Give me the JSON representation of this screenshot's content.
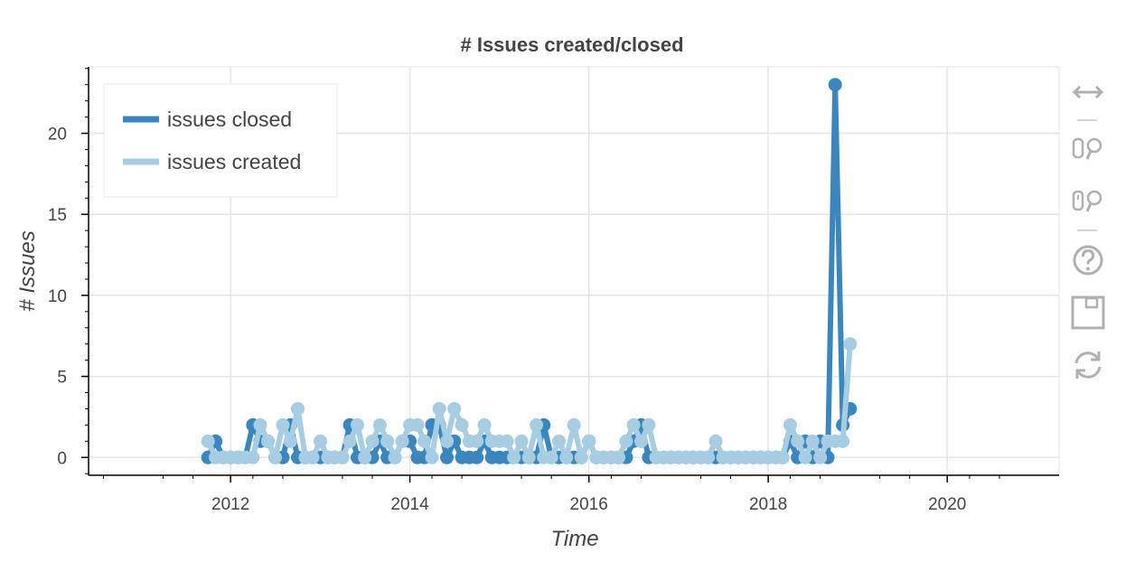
{
  "chart_data": {
    "type": "line",
    "title": "# Issues created/closed",
    "xlabel": "Time",
    "ylabel": "# Issues",
    "x_axis_type": "datetime",
    "xlim": [
      "2010-06-01",
      "2021-04-01"
    ],
    "ylim": [
      -1.1,
      24.1
    ],
    "x_ticks": [
      "2012",
      "2014",
      "2016",
      "2018",
      "2020"
    ],
    "y_ticks": [
      0,
      5,
      10,
      15,
      20
    ],
    "grid": true,
    "legend_position": "top-left",
    "series": [
      {
        "name": "issues closed",
        "color": "#3a87c0",
        "points": [
          [
            "2011-10-01",
            0
          ],
          [
            "2011-11-01",
            1
          ],
          [
            "2011-12-01",
            0
          ],
          [
            "2012-01-01",
            0
          ],
          [
            "2012-02-01",
            0
          ],
          [
            "2012-03-01",
            0
          ],
          [
            "2012-04-01",
            2
          ],
          [
            "2012-05-01",
            1
          ],
          [
            "2012-06-01",
            1
          ],
          [
            "2012-07-01",
            0
          ],
          [
            "2012-08-01",
            0
          ],
          [
            "2012-09-01",
            2
          ],
          [
            "2012-10-01",
            0
          ],
          [
            "2012-11-01",
            0
          ],
          [
            "2012-12-01",
            0
          ],
          [
            "2013-01-01",
            0
          ],
          [
            "2013-02-01",
            0
          ],
          [
            "2013-03-01",
            0
          ],
          [
            "2013-04-01",
            0
          ],
          [
            "2013-05-01",
            2
          ],
          [
            "2013-06-01",
            0
          ],
          [
            "2013-07-01",
            0
          ],
          [
            "2013-08-01",
            0
          ],
          [
            "2013-09-01",
            1
          ],
          [
            "2013-10-01",
            0
          ],
          [
            "2013-11-01",
            0
          ],
          [
            "2013-12-01",
            1
          ],
          [
            "2014-01-01",
            1
          ],
          [
            "2014-02-01",
            0
          ],
          [
            "2014-03-01",
            0
          ],
          [
            "2014-04-01",
            2
          ],
          [
            "2014-05-01",
            2
          ],
          [
            "2014-06-01",
            0
          ],
          [
            "2014-07-01",
            1
          ],
          [
            "2014-08-01",
            0
          ],
          [
            "2014-09-01",
            0
          ],
          [
            "2014-10-01",
            0
          ],
          [
            "2014-11-01",
            1
          ],
          [
            "2014-12-01",
            0
          ],
          [
            "2015-01-01",
            0
          ],
          [
            "2015-02-01",
            0
          ],
          [
            "2015-03-01",
            0
          ],
          [
            "2015-04-01",
            0
          ],
          [
            "2015-05-01",
            0
          ],
          [
            "2015-06-01",
            0
          ],
          [
            "2015-07-01",
            2
          ],
          [
            "2015-08-01",
            0
          ],
          [
            "2015-09-01",
            0
          ],
          [
            "2015-10-01",
            0
          ],
          [
            "2015-11-01",
            0
          ],
          [
            "2015-12-01",
            0
          ],
          [
            "2016-01-01",
            1
          ],
          [
            "2016-02-01",
            0
          ],
          [
            "2016-03-01",
            0
          ],
          [
            "2016-04-01",
            0
          ],
          [
            "2016-05-01",
            0
          ],
          [
            "2016-06-01",
            0
          ],
          [
            "2016-07-01",
            1
          ],
          [
            "2016-08-01",
            2
          ],
          [
            "2016-09-01",
            0
          ],
          [
            "2016-10-01",
            0
          ],
          [
            "2016-11-01",
            0
          ],
          [
            "2016-12-01",
            0
          ],
          [
            "2017-01-01",
            0
          ],
          [
            "2017-02-01",
            0
          ],
          [
            "2017-03-01",
            0
          ],
          [
            "2017-04-01",
            0
          ],
          [
            "2017-05-01",
            0
          ],
          [
            "2017-06-01",
            0
          ],
          [
            "2017-07-01",
            0
          ],
          [
            "2017-08-01",
            0
          ],
          [
            "2017-09-01",
            0
          ],
          [
            "2017-10-01",
            0
          ],
          [
            "2017-11-01",
            0
          ],
          [
            "2017-12-01",
            0
          ],
          [
            "2018-01-01",
            0
          ],
          [
            "2018-02-01",
            0
          ],
          [
            "2018-03-01",
            0
          ],
          [
            "2018-04-01",
            1
          ],
          [
            "2018-05-01",
            0
          ],
          [
            "2018-06-01",
            1
          ],
          [
            "2018-07-01",
            0
          ],
          [
            "2018-08-01",
            1
          ],
          [
            "2018-09-01",
            0
          ],
          [
            "2018-10-01",
            23
          ],
          [
            "2018-11-01",
            2
          ],
          [
            "2018-12-01",
            3
          ]
        ]
      },
      {
        "name": "issues created",
        "color": "#a6cde2",
        "points": [
          [
            "2011-10-01",
            1
          ],
          [
            "2011-11-01",
            0
          ],
          [
            "2011-12-01",
            0
          ],
          [
            "2012-01-01",
            0
          ],
          [
            "2012-02-01",
            0
          ],
          [
            "2012-03-01",
            0
          ],
          [
            "2012-04-01",
            0
          ],
          [
            "2012-05-01",
            2
          ],
          [
            "2012-06-01",
            1
          ],
          [
            "2012-07-01",
            0
          ],
          [
            "2012-08-01",
            2
          ],
          [
            "2012-09-01",
            1
          ],
          [
            "2012-10-01",
            3
          ],
          [
            "2012-11-01",
            0
          ],
          [
            "2012-12-01",
            0
          ],
          [
            "2013-01-01",
            1
          ],
          [
            "2013-02-01",
            0
          ],
          [
            "2013-03-01",
            0
          ],
          [
            "2013-04-01",
            0
          ],
          [
            "2013-05-01",
            1
          ],
          [
            "2013-06-01",
            2
          ],
          [
            "2013-07-01",
            0
          ],
          [
            "2013-08-01",
            1
          ],
          [
            "2013-09-01",
            2
          ],
          [
            "2013-10-01",
            1
          ],
          [
            "2013-11-01",
            0
          ],
          [
            "2013-12-01",
            1
          ],
          [
            "2014-01-01",
            2
          ],
          [
            "2014-02-01",
            2
          ],
          [
            "2014-03-01",
            1
          ],
          [
            "2014-04-01",
            0
          ],
          [
            "2014-05-01",
            3
          ],
          [
            "2014-06-01",
            1
          ],
          [
            "2014-07-01",
            3
          ],
          [
            "2014-08-01",
            2
          ],
          [
            "2014-09-01",
            1
          ],
          [
            "2014-10-01",
            1
          ],
          [
            "2014-11-01",
            2
          ],
          [
            "2014-12-01",
            1
          ],
          [
            "2015-01-01",
            1
          ],
          [
            "2015-02-01",
            1
          ],
          [
            "2015-03-01",
            0
          ],
          [
            "2015-04-01",
            1
          ],
          [
            "2015-05-01",
            0
          ],
          [
            "2015-06-01",
            2
          ],
          [
            "2015-07-01",
            0
          ],
          [
            "2015-08-01",
            0
          ],
          [
            "2015-09-01",
            1
          ],
          [
            "2015-10-01",
            0
          ],
          [
            "2015-11-01",
            2
          ],
          [
            "2015-12-01",
            0
          ],
          [
            "2016-01-01",
            1
          ],
          [
            "2016-02-01",
            0
          ],
          [
            "2016-03-01",
            0
          ],
          [
            "2016-04-01",
            0
          ],
          [
            "2016-05-01",
            0
          ],
          [
            "2016-06-01",
            1
          ],
          [
            "2016-07-01",
            2
          ],
          [
            "2016-08-01",
            1
          ],
          [
            "2016-09-01",
            2
          ],
          [
            "2016-10-01",
            0
          ],
          [
            "2016-11-01",
            0
          ],
          [
            "2016-12-01",
            0
          ],
          [
            "2017-01-01",
            0
          ],
          [
            "2017-02-01",
            0
          ],
          [
            "2017-03-01",
            0
          ],
          [
            "2017-04-01",
            0
          ],
          [
            "2017-05-01",
            0
          ],
          [
            "2017-06-01",
            1
          ],
          [
            "2017-07-01",
            0
          ],
          [
            "2017-08-01",
            0
          ],
          [
            "2017-09-01",
            0
          ],
          [
            "2017-10-01",
            0
          ],
          [
            "2017-11-01",
            0
          ],
          [
            "2017-12-01",
            0
          ],
          [
            "2018-01-01",
            0
          ],
          [
            "2018-02-01",
            0
          ],
          [
            "2018-03-01",
            0
          ],
          [
            "2018-04-01",
            2
          ],
          [
            "2018-05-01",
            1
          ],
          [
            "2018-06-01",
            0
          ],
          [
            "2018-07-01",
            1
          ],
          [
            "2018-08-01",
            0
          ],
          [
            "2018-09-01",
            1
          ],
          [
            "2018-10-01",
            1
          ],
          [
            "2018-11-01",
            1
          ],
          [
            "2018-12-01",
            7
          ]
        ]
      }
    ]
  },
  "toolbar": {
    "tools": [
      {
        "name": "pan-tool",
        "icon": "pan-arrows-icon"
      },
      {
        "name": "box-zoom-tool",
        "icon": "box-zoom-icon"
      },
      {
        "name": "wheel-zoom-tool",
        "icon": "wheel-zoom-icon"
      },
      {
        "name": "help-tool",
        "icon": "help-icon"
      },
      {
        "name": "save-tool",
        "icon": "save-icon"
      },
      {
        "name": "reset-tool",
        "icon": "reset-icon"
      }
    ],
    "icon_color": "#b0b0b0"
  }
}
